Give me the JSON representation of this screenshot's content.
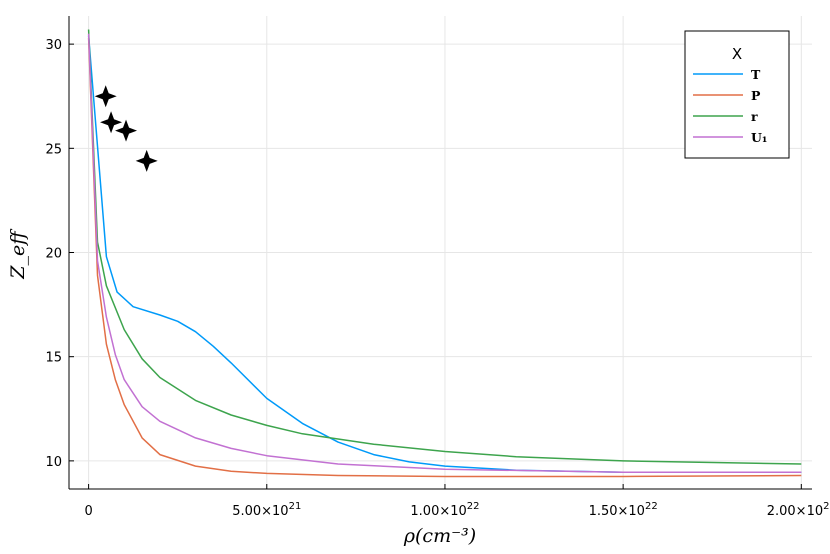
{
  "chart_data": {
    "type": "line",
    "xlabel": "ρ(cm⁻³)",
    "ylabel": "Z_eff",
    "xlim": [
      -5.5e+20,
      2.03e+22
    ],
    "ylim": [
      8.65,
      31.35
    ],
    "grid": true,
    "legend": {
      "title": "X",
      "position": "top-right"
    },
    "x_ticks": [
      {
        "value": 0,
        "label": "0",
        "exp": ""
      },
      {
        "value": 5e+21,
        "label": "5.00×10",
        "exp": "21"
      },
      {
        "value": 1e+22,
        "label": "1.00×10",
        "exp": "22"
      },
      {
        "value": 1.5e+22,
        "label": "1.50×10",
        "exp": "22"
      },
      {
        "value": 2e+22,
        "label": "2.00×10",
        "exp": "22"
      }
    ],
    "y_ticks": [
      10,
      15,
      20,
      25,
      30
    ],
    "series": [
      {
        "name": "T",
        "color": "#009af9",
        "x": [
          0,
          5e+20,
          8e+20,
          1.25e+21,
          2e+21,
          2.5e+21,
          3e+21,
          3.5e+21,
          4e+21,
          5e+21,
          6e+21,
          7e+21,
          8e+21,
          9e+21,
          1e+22,
          1.2e+22,
          1.5e+22,
          2e+22
        ],
        "y": [
          30.4,
          19.8,
          18.1,
          17.4,
          17.0,
          16.7,
          16.2,
          15.5,
          14.7,
          13.0,
          11.8,
          10.9,
          10.3,
          9.95,
          9.75,
          9.55,
          9.45,
          9.45
        ]
      },
      {
        "name": "P",
        "color": "#e26f46",
        "x": [
          0,
          2.5e+20,
          5e+20,
          7.5e+20,
          1e+21,
          1.5e+21,
          2e+21,
          3e+21,
          4e+21,
          5e+21,
          7e+21,
          1e+22,
          1.5e+22,
          2e+22
        ],
        "y": [
          30.3,
          18.9,
          15.6,
          13.9,
          12.7,
          11.1,
          10.3,
          9.75,
          9.5,
          9.4,
          9.3,
          9.25,
          9.25,
          9.3
        ]
      },
      {
        "name": "r",
        "color": "#3da44d",
        "x": [
          0,
          2.5e+20,
          5e+20,
          1e+21,
          1.5e+21,
          2e+21,
          3e+21,
          4e+21,
          5e+21,
          6e+21,
          8e+21,
          1e+22,
          1.2e+22,
          1.5e+22,
          2e+22
        ],
        "y": [
          30.7,
          20.5,
          18.4,
          16.3,
          14.9,
          14.0,
          12.9,
          12.2,
          11.7,
          11.3,
          10.8,
          10.45,
          10.2,
          10.0,
          9.85
        ]
      },
      {
        "name": "U₁",
        "color": "#c271d2",
        "x": [
          0,
          2.5e+20,
          5e+20,
          7.5e+20,
          1e+21,
          1.5e+21,
          2e+21,
          3e+21,
          4e+21,
          5e+21,
          7e+21,
          1e+22,
          1.5e+22,
          2e+22
        ],
        "y": [
          30.5,
          19.6,
          16.9,
          15.1,
          13.9,
          12.6,
          11.9,
          11.1,
          10.6,
          10.25,
          9.85,
          9.6,
          9.45,
          9.45
        ]
      }
    ],
    "markers": {
      "shape": "star4",
      "color": "#000000",
      "points": [
        {
          "x": 4.8e+20,
          "y": 27.5
        },
        {
          "x": 6.3e+20,
          "y": 26.25
        },
        {
          "x": 1.05e+21,
          "y": 25.85
        },
        {
          "x": 1.63e+21,
          "y": 24.4
        }
      ]
    }
  }
}
